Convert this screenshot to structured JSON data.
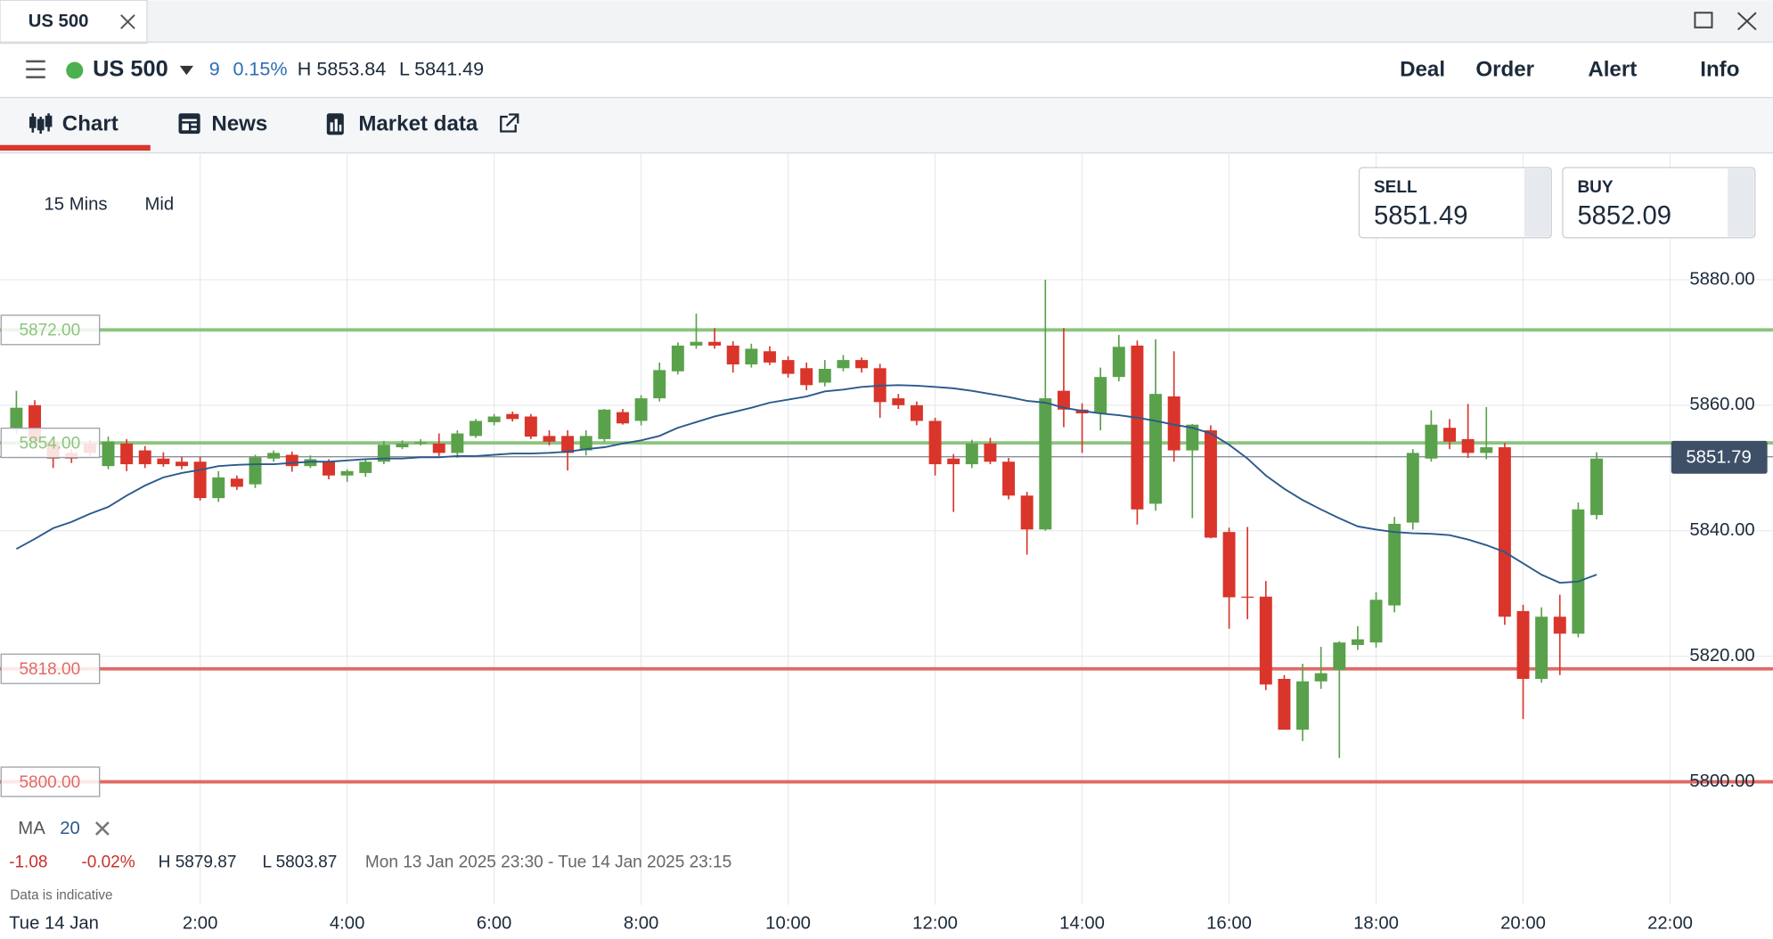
{
  "window": {
    "tab": "US 500"
  },
  "instrument": {
    "name": "US 500",
    "change": "9",
    "change_pct": "0.15%",
    "high": "H 5853.84",
    "low": "L 5841.49"
  },
  "actions": [
    "Deal",
    "Order",
    "Alert",
    "Info"
  ],
  "tabs": [
    "Chart",
    "News",
    "Market data"
  ],
  "settings": {
    "interval": "15 Mins",
    "price_type": "Mid"
  },
  "quote": {
    "sell_label": "SELL",
    "sell": "5851.49",
    "buy_label": "BUY",
    "buy": "5852.09"
  },
  "stats": {
    "change": "-1.08",
    "change_pct": "-0.02%",
    "high": "H 5879.87",
    "low": "L 5803.87",
    "range": "Mon 13 Jan 2025 23:30 - Tue 14 Jan 2025 23:15",
    "note": "Data is indicative"
  },
  "chart_data": {
    "type": "candlestick",
    "date_label": "Tue 14 Jan",
    "up_color": "#5aa14b",
    "down_color": "#d9352b",
    "x": [
      -0.5,
      -0.25,
      0,
      0.25,
      0.5,
      0.75,
      1,
      1.25,
      1.5,
      1.75,
      2,
      2.25,
      2.5,
      2.75,
      3,
      3.25,
      3.5,
      3.75,
      4,
      4.25,
      4.5,
      4.75,
      5,
      5.25,
      5.5,
      5.75,
      6,
      6.25,
      6.5,
      6.75,
      7,
      7.25,
      7.5,
      7.75,
      8,
      8.25,
      8.5,
      8.75,
      9,
      9.25,
      9.5,
      9.75,
      10,
      10.25,
      10.5,
      10.75,
      11,
      11.25,
      11.5,
      11.75,
      12,
      12.25,
      12.5,
      12.75,
      13,
      13.25,
      13.5,
      13.75,
      14,
      14.25,
      14.5,
      14.75,
      15,
      15.25,
      15.5,
      15.75,
      16,
      16.25,
      16.5,
      16.75,
      17,
      17.25,
      17.5,
      17.75,
      18,
      18.25,
      18.5,
      18.75,
      19,
      19.25,
      19.5,
      19.75,
      20,
      20.25,
      20.5,
      20.75,
      21
    ],
    "open": [
      5856.4,
      5860.0,
      5854.2,
      5852.4,
      5853.9,
      5850.3,
      5853.9,
      5852.8,
      5851.5,
      5851.0,
      5851.0,
      5845.2,
      5848.3,
      5847.4,
      5851.5,
      5852.1,
      5850.3,
      5851.0,
      5848.8,
      5849.2,
      5851.0,
      5853.3,
      5853.9,
      5853.9,
      5852.4,
      5855.1,
      5857.3,
      5858.6,
      5858.2,
      5855.1,
      5855.1,
      5852.8,
      5854.6,
      5858.9,
      5857.5,
      5861.1,
      5865.4,
      5869.5,
      5870.1,
      5869.5,
      5866.5,
      5868.6,
      5867.2,
      5865.9,
      5863.6,
      5865.9,
      5867.2,
      5865.9,
      5861.1,
      5860.0,
      5857.5,
      5851.5,
      5850.6,
      5853.9,
      5851.0,
      5845.6,
      5840.2,
      5862.3,
      5859.3,
      5858.7,
      5864.5,
      5869.5,
      5844.3,
      5861.4,
      5852.8,
      5856.0,
      5839.8,
      5829.5,
      5829.5,
      5816.4,
      5808.3,
      5816.0,
      5817.8,
      5821.8,
      5822.2,
      5828.1,
      5841.3,
      5851.5,
      5856.4,
      5854.6,
      5852.4,
      5853.3,
      5827.2,
      5816.4,
      5826.3,
      5823.6,
      5842.5
    ],
    "high": [
      5862.3,
      5860.8,
      5855.0,
      5853.0,
      5854.5,
      5855.0,
      5854.6,
      5853.5,
      5852.5,
      5851.8,
      5851.8,
      5849.5,
      5848.8,
      5852.1,
      5852.8,
      5852.6,
      5852.0,
      5851.4,
      5849.8,
      5851.5,
      5854.3,
      5854.4,
      5854.6,
      5855.5,
      5856.0,
      5857.8,
      5858.6,
      5859.0,
      5858.6,
      5856.0,
      5856.0,
      5856.0,
      5859.4,
      5859.4,
      5861.6,
      5866.8,
      5870.0,
      5874.6,
      5872.3,
      5870.2,
      5869.8,
      5869.4,
      5867.8,
      5866.8,
      5867.2,
      5868.0,
      5867.6,
      5866.6,
      5861.8,
      5860.6,
      5858.0,
      5852.2,
      5854.5,
      5854.8,
      5851.6,
      5846.2,
      5880.0,
      5872.3,
      5860.3,
      5866.0,
      5871.2,
      5870.3,
      5870.5,
      5868.6,
      5857.0,
      5856.8,
      5840.5,
      5840.6,
      5832.0,
      5817.0,
      5818.8,
      5821.5,
      5822.4,
      5824.8,
      5830.2,
      5842.2,
      5853.0,
      5859.2,
      5857.8,
      5860.2,
      5859.7,
      5854.0,
      5828.2,
      5827.8,
      5829.8,
      5844.5,
      5852.5
    ],
    "low": [
      5855.4,
      5853.5,
      5850.0,
      5850.8,
      5851.8,
      5849.8,
      5849.5,
      5850.0,
      5850.2,
      5849.8,
      5844.8,
      5844.6,
      5846.5,
      5846.8,
      5851.0,
      5849.4,
      5850.0,
      5848.2,
      5847.8,
      5848.6,
      5850.6,
      5853.0,
      5853.6,
      5851.9,
      5851.6,
      5854.8,
      5856.8,
      5857.4,
      5854.6,
      5853.6,
      5849.6,
      5852.0,
      5854.2,
      5856.9,
      5856.8,
      5860.6,
      5864.9,
      5869.0,
      5869.0,
      5865.2,
      5866.0,
      5866.4,
      5864.4,
      5862.4,
      5863.0,
      5865.4,
      5865.2,
      5858.0,
      5859.4,
      5856.8,
      5848.8,
      5843.0,
      5850.0,
      5850.6,
      5845.0,
      5836.2,
      5840.0,
      5856.5,
      5852.4,
      5856.0,
      5863.8,
      5841.0,
      5843.2,
      5851.0,
      5842.0,
      5838.8,
      5824.4,
      5825.9,
      5814.6,
      5808.3,
      5806.5,
      5814.8,
      5803.8,
      5821.0,
      5821.4,
      5827.0,
      5840.2,
      5851.0,
      5853.0,
      5851.6,
      5851.4,
      5825.0,
      5810.0,
      5815.8,
      5817.0,
      5823.0,
      5841.8
    ],
    "close": [
      5859.6,
      5854.2,
      5851.5,
      5851.5,
      5852.4,
      5854.2,
      5850.6,
      5850.6,
      5850.6,
      5850.3,
      5845.2,
      5848.5,
      5847.0,
      5851.7,
      5852.4,
      5850.3,
      5851.4,
      5848.8,
      5849.5,
      5851.0,
      5853.7,
      5853.9,
      5854.1,
      5852.4,
      5855.5,
      5857.5,
      5858.2,
      5857.8,
      5855.0,
      5854.2,
      5852.4,
      5855.1,
      5859.3,
      5857.1,
      5861.1,
      5865.6,
      5869.5,
      5870.1,
      5869.5,
      5866.5,
      5869.0,
      5866.8,
      5865.0,
      5863.2,
      5865.8,
      5867.2,
      5865.9,
      5860.5,
      5860.0,
      5857.5,
      5850.6,
      5850.6,
      5853.9,
      5851.0,
      5845.6,
      5840.2,
      5861.1,
      5859.3,
      5858.7,
      5864.5,
      5869.3,
      5843.4,
      5861.8,
      5852.8,
      5856.9,
      5838.9,
      5829.4,
      5829.4,
      5815.5,
      5808.3,
      5816.0,
      5817.3,
      5822.2,
      5822.7,
      5829.0,
      5841.1,
      5852.4,
      5856.9,
      5854.2,
      5852.4,
      5853.3,
      5826.3,
      5816.4,
      5826.3,
      5823.6,
      5843.4,
      5851.5
    ],
    "ma": {
      "name": "MA",
      "period": "20",
      "color": "#2c5a8c",
      "values": [
        5837.1,
        5838.7,
        5840.4,
        5841.4,
        5842.7,
        5843.8,
        5845.6,
        5847.2,
        5848.5,
        5849.2,
        5849.7,
        5850.3,
        5850.5,
        5850.6,
        5850.6,
        5850.8,
        5851.0,
        5851.0,
        5851.2,
        5851.4,
        5851.5,
        5851.5,
        5851.7,
        5851.7,
        5851.9,
        5851.9,
        5852.1,
        5852.3,
        5852.3,
        5852.4,
        5852.6,
        5853.0,
        5853.3,
        5853.9,
        5854.4,
        5855.1,
        5856.4,
        5857.3,
        5858.2,
        5858.9,
        5859.6,
        5860.4,
        5860.9,
        5861.4,
        5862.2,
        5862.5,
        5862.9,
        5863.1,
        5863.2,
        5863.1,
        5862.9,
        5862.7,
        5862.3,
        5861.8,
        5861.3,
        5860.7,
        5860.4,
        5859.6,
        5859.1,
        5858.7,
        5858.4,
        5858.0,
        5857.5,
        5856.9,
        5856.4,
        5855.5,
        5853.7,
        5851.5,
        5848.8,
        5846.7,
        5844.9,
        5843.4,
        5842.0,
        5840.7,
        5840.2,
        5839.8,
        5839.6,
        5839.5,
        5839.3,
        5838.6,
        5837.7,
        5836.6,
        5834.8,
        5833.0,
        5831.7,
        5831.9,
        5833.0
      ]
    },
    "levels": [
      {
        "value": 5872,
        "label": "5872.00",
        "color": "#8cc47e"
      },
      {
        "value": 5854,
        "label": "5854.00",
        "color": "#8cc47e"
      },
      {
        "value": 5818,
        "label": "5818.00",
        "color": "#e06a66"
      },
      {
        "value": 5800,
        "label": "5800.00",
        "color": "#e06a66"
      }
    ],
    "current": {
      "value": 5851.79,
      "label": "5851.79"
    },
    "xlim": [
      -0.723,
      23.4
    ],
    "ylim": [
      5780.4,
      5900.2
    ],
    "xticks": [
      {
        "value": 2,
        "label": "2:00"
      },
      {
        "value": 4,
        "label": "4:00"
      },
      {
        "value": 6,
        "label": "6:00"
      },
      {
        "value": 8,
        "label": "8:00"
      },
      {
        "value": 10,
        "label": "10:00"
      },
      {
        "value": 12,
        "label": "12:00"
      },
      {
        "value": 14,
        "label": "14:00"
      },
      {
        "value": 16,
        "label": "16:00"
      },
      {
        "value": 18,
        "label": "18:00"
      },
      {
        "value": 20,
        "label": "20:00"
      },
      {
        "value": 22,
        "label": "22:00"
      }
    ],
    "yticks": [
      {
        "value": 5800,
        "label": "5800.00"
      },
      {
        "value": 5820,
        "label": "5820.00"
      },
      {
        "value": 5840,
        "label": "5840.00"
      },
      {
        "value": 5860,
        "label": "5860.00"
      },
      {
        "value": 5880,
        "label": "5880.00"
      }
    ],
    "grid": true
  }
}
